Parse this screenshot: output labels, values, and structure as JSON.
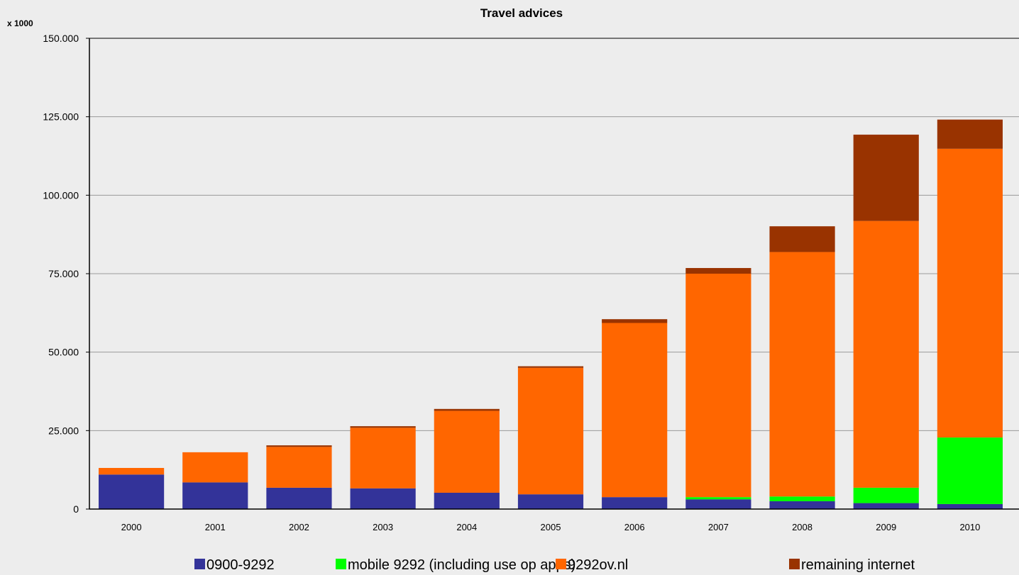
{
  "chart_data": {
    "type": "bar",
    "stacked": true,
    "title": "Travel advices",
    "unit_label": "x 1000",
    "xlabel": "",
    "ylabel": "",
    "ylim": [
      0,
      150000
    ],
    "ytick_values": [
      0,
      25000,
      50000,
      75000,
      100000,
      125000,
      150000
    ],
    "ytick_labels": [
      "0",
      "25.000",
      "50.000",
      "75.000",
      "100.000",
      "125.000",
      "150.000"
    ],
    "grid": true,
    "legend_position": "bottom",
    "categories": [
      "2000",
      "2001",
      "2002",
      "2003",
      "2004",
      "2005",
      "2006",
      "2007",
      "2008",
      "2009",
      "2010"
    ],
    "series": [
      {
        "name": "0900-9292",
        "color": "#333399",
        "values": [
          11000,
          8500,
          6800,
          6600,
          5200,
          4700,
          3800,
          3100,
          2500,
          1900,
          1600
        ]
      },
      {
        "name": "mobile 9292 (including use op apps)",
        "color": "#00ff00",
        "values": [
          0,
          0,
          0,
          0,
          0,
          0,
          0,
          700,
          1500,
          4900,
          21200
        ]
      },
      {
        "name": "9292ov.nl",
        "color": "#ff6600",
        "values": [
          2100,
          9600,
          13000,
          19300,
          26100,
          40300,
          55500,
          71200,
          77900,
          85000,
          92000
        ]
      },
      {
        "name": "remaining internet",
        "color": "#993300",
        "values": [
          0,
          0,
          500,
          500,
          600,
          500,
          1200,
          1800,
          8200,
          27500,
          9300
        ]
      }
    ]
  }
}
